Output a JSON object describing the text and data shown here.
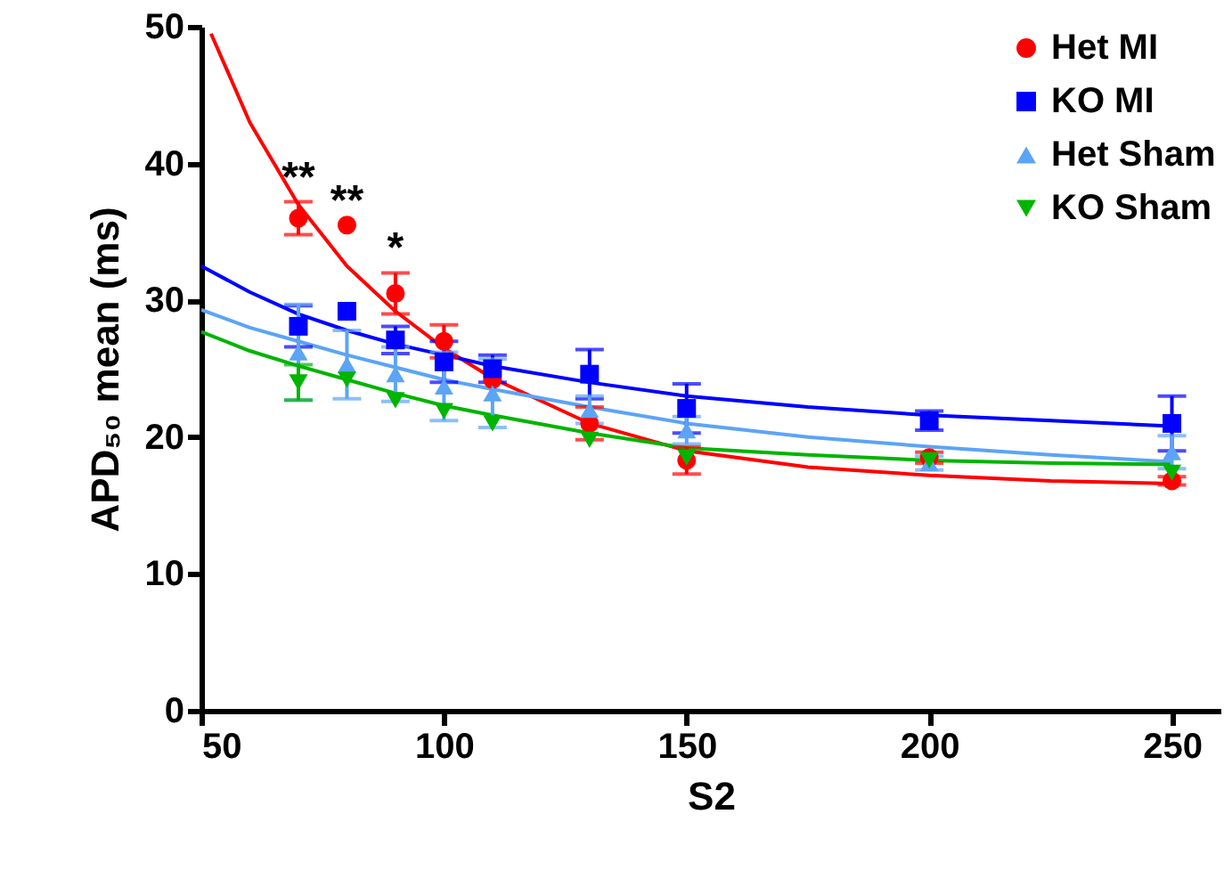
{
  "chart_data": {
    "type": "scatter",
    "xlabel": "S2",
    "ylabel": "APD₅₀ mean (ms)",
    "xlim": [
      50,
      260
    ],
    "ylim": [
      0,
      50
    ],
    "xticks": [
      50,
      100,
      150,
      200,
      250
    ],
    "yticks": [
      0,
      10,
      20,
      30,
      40,
      50
    ],
    "grid": false,
    "legend": "top right",
    "x": [
      70,
      80,
      90,
      100,
      110,
      130,
      150,
      200,
      250
    ],
    "series": [
      {
        "name": "Het MI",
        "color": "#ff0000",
        "marker": "circle",
        "values": [
          36,
          35.5,
          30.5,
          27,
          24.2,
          21,
          18.3,
          18.5,
          16.8
        ],
        "errors": [
          1.2,
          null,
          1.5,
          1.2,
          null,
          1.2,
          1,
          0.4,
          0.3
        ]
      },
      {
        "name": "KO MI",
        "color": "#0000ff",
        "marker": "square",
        "values": [
          28.1,
          29.2,
          27.1,
          25.5,
          25,
          24.6,
          22.1,
          21.2,
          21
        ],
        "errors": [
          1.5,
          null,
          1,
          1.5,
          1,
          1.8,
          1.8,
          0.7,
          2
        ]
      },
      {
        "name": "Het Sham",
        "color": "#5ca4f5",
        "marker": "triangle",
        "values": [
          26.2,
          25.3,
          24.6,
          23.7,
          23.2,
          22,
          20.5,
          18.1,
          18.9
        ],
        "errors": [
          3.5,
          2.5,
          2,
          2.5,
          2.5,
          1,
          1,
          0.5,
          1.2
        ]
      },
      {
        "name": "KO Sham",
        "color": "#00b400",
        "marker": "triangle-down",
        "values": [
          24,
          24.2,
          22.7,
          21.9,
          21,
          19.8,
          18.5,
          18.3,
          17.4
        ],
        "errors": [
          1.3,
          null,
          null,
          null,
          null,
          null,
          null,
          null,
          null
        ]
      },
      {
        "type": "line",
        "color": "#ff0000",
        "x": [
          52,
          60,
          70,
          80,
          90,
          100,
          110,
          130,
          150,
          175,
          200,
          225,
          250
        ],
        "values": [
          49.5,
          43,
          37,
          32.5,
          29.2,
          26.5,
          24.3,
          21,
          19,
          17.8,
          17.2,
          16.8,
          16.6
        ]
      },
      {
        "type": "line",
        "color": "#0000ff",
        "x": [
          50,
          60,
          70,
          80,
          90,
          100,
          110,
          130,
          150,
          175,
          200,
          225,
          250
        ],
        "values": [
          32.5,
          30.6,
          29,
          27.8,
          26.8,
          26,
          25.2,
          24,
          23,
          22.2,
          21.6,
          21.2,
          20.8
        ]
      },
      {
        "type": "line",
        "color": "#5ca4f5",
        "x": [
          50,
          60,
          70,
          80,
          90,
          100,
          110,
          130,
          150,
          175,
          200,
          225,
          250
        ],
        "values": [
          29.3,
          28,
          27,
          26,
          25.1,
          24.2,
          23.5,
          22.2,
          21,
          20,
          19.3,
          18.7,
          18.2
        ]
      },
      {
        "type": "line",
        "color": "#00b400",
        "x": [
          50,
          60,
          70,
          80,
          90,
          100,
          110,
          130,
          150,
          175,
          200,
          225,
          250
        ],
        "values": [
          27.7,
          26.3,
          25.2,
          24.2,
          23.2,
          22.3,
          21.6,
          20.3,
          19.2,
          18.7,
          18.3,
          18.1,
          18
        ]
      }
    ],
    "annotations": [
      {
        "text": "**",
        "x": 70,
        "y": 37.2
      },
      {
        "text": "**",
        "x": 80,
        "y": 35.5
      },
      {
        "text": "*",
        "x": 90,
        "y": 32
      }
    ]
  }
}
